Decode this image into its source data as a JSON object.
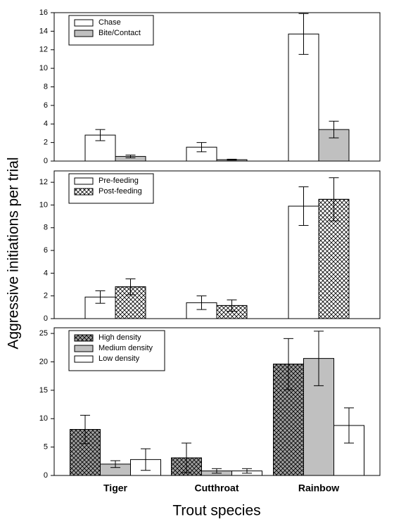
{
  "chart_data": [
    {
      "type": "bar",
      "categories": [
        null,
        null,
        null
      ],
      "series": [
        {
          "name": "Chase",
          "color": "#ffffff",
          "pattern": "none",
          "values": [
            2.8,
            1.5,
            13.7
          ],
          "errors": [
            0.6,
            0.5,
            2.2
          ]
        },
        {
          "name": "Bite/Contact",
          "color": "#c0c0c0",
          "pattern": "none",
          "values": [
            0.5,
            0.15,
            3.4
          ],
          "errors": [
            0.15,
            0.05,
            0.9
          ]
        }
      ],
      "ylim": [
        0,
        16
      ],
      "yticks": [
        0,
        2,
        4,
        6,
        8,
        10,
        12,
        14,
        16
      ],
      "legend": "upper left"
    },
    {
      "type": "bar",
      "categories": [
        null,
        null,
        null
      ],
      "ylabel": "Aggressive initiations per trial",
      "series": [
        {
          "name": "Pre-feeding",
          "color": "#ffffff",
          "pattern": "none",
          "values": [
            1.9,
            1.4,
            9.9
          ],
          "errors": [
            0.55,
            0.6,
            1.7
          ]
        },
        {
          "name": "Post-feeding",
          "color": "#ffffff",
          "pattern": "crosshatch",
          "values": [
            2.8,
            1.15,
            10.5
          ],
          "errors": [
            0.7,
            0.5,
            1.9
          ]
        }
      ],
      "ylim": [
        0,
        13
      ],
      "yticks": [
        0,
        2,
        4,
        6,
        8,
        10,
        12
      ],
      "legend": "upper left"
    },
    {
      "type": "bar",
      "categories": [
        "Tiger",
        "Cutthroat",
        "Rainbow"
      ],
      "xlabel": "Trout species",
      "series": [
        {
          "name": "High density",
          "color": "#a0a0a0",
          "pattern": "crosshatch",
          "values": [
            8.1,
            3.1,
            19.6
          ],
          "errors": [
            2.5,
            2.6,
            4.5
          ]
        },
        {
          "name": "Medium density",
          "color": "#c0c0c0",
          "pattern": "none",
          "values": [
            2.0,
            0.8,
            20.6
          ],
          "errors": [
            0.6,
            0.4,
            4.8
          ]
        },
        {
          "name": "Low density",
          "color": "#ffffff",
          "pattern": "none",
          "values": [
            2.8,
            0.8,
            8.8
          ],
          "errors": [
            1.9,
            0.4,
            3.1
          ]
        }
      ],
      "ylim": [
        0,
        26
      ],
      "yticks": [
        0,
        5,
        10,
        15,
        20,
        25
      ],
      "legend": "upper left"
    }
  ]
}
